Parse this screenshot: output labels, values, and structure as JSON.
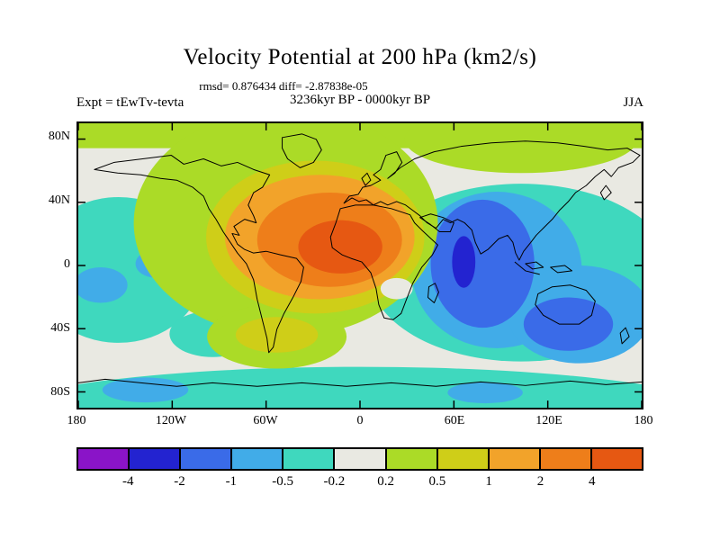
{
  "title": "Velocity Potential at 200 hPa (km2/s)",
  "header": {
    "stats_line": "rmsd= 0.876434 diff= -2.87838e-05",
    "period_line": "3236kyr BP - 0000kyr BP",
    "experiment_label": "Expt = tEwTv-tevta",
    "season_label": "JJA"
  },
  "chart_data": {
    "type": "heatmap",
    "subtype": "filled_contour_global_map",
    "title": "Velocity Potential at 200 hPa (km2/s)",
    "units": "km2/s",
    "statistics": {
      "rmsd": 0.876434,
      "diff": -2.87838e-05
    },
    "difference_of": "3236kyr BP - 0000kyr BP",
    "experiment": "tEwTv-tevta",
    "season": "JJA",
    "projection": "equirectangular global map with coastlines, 90N-90S, 180W-180E",
    "x_axis": {
      "ticks": [
        {
          "label": "180",
          "deg": -180
        },
        {
          "label": "120W",
          "deg": -120
        },
        {
          "label": "60W",
          "deg": -60
        },
        {
          "label": "0",
          "deg": 0
        },
        {
          "label": "60E",
          "deg": 60
        },
        {
          "label": "120E",
          "deg": 120
        },
        {
          "label": "180",
          "deg": 180
        }
      ]
    },
    "y_axis": {
      "ticks": [
        {
          "label": "80N",
          "deg": 80
        },
        {
          "label": "40N",
          "deg": 40
        },
        {
          "label": "0",
          "deg": 0
        },
        {
          "label": "40S",
          "deg": -40
        },
        {
          "label": "80S",
          "deg": -80
        }
      ]
    },
    "colorbar": {
      "orientation": "horizontal",
      "levels": [
        -4,
        -2,
        -1,
        -0.5,
        -0.2,
        0.2,
        0.5,
        1,
        2,
        4
      ],
      "tick_labels": [
        "-4",
        "-2",
        "-1",
        "-0.5",
        "-0.2",
        "0.2",
        "0.5",
        "1",
        "2",
        "4"
      ],
      "colors": [
        "#8A14C8",
        "#2323D0",
        "#3A6BE8",
        "#41ACE8",
        "#3FD8BE",
        "#E9E9E2",
        "#ABDB27",
        "#CFCE18",
        "#F2A32A",
        "#EE7E1A",
        "#E65812"
      ]
    },
    "anomaly_centers": [
      {
        "region": "North Africa / tropical Atlantic / Europe",
        "sign": "positive",
        "peak_level": "> 4 km2/s over equatorial North Africa"
      },
      {
        "region": "Arabian Sea / Indian Ocean near 65E, equator",
        "sign": "negative",
        "peak_level": "-4 to -2 km2/s"
      },
      {
        "region": "South Indian Ocean south of Australia",
        "sign": "negative",
        "peak_level": "-2 to -1 km2/s"
      },
      {
        "region": "Pacific basin (broad)",
        "sign": "weak negative",
        "peak_level": "-0.5 to -0.2 km2/s"
      },
      {
        "region": "high latitudes (band near 80N)",
        "sign": "weak positive",
        "peak_level": "0.2 to 0.5 km2/s"
      },
      {
        "region": "Southern Ocean band",
        "sign": "weak negative",
        "peak_level": "-0.5 to -0.2 km2/s"
      }
    ]
  }
}
